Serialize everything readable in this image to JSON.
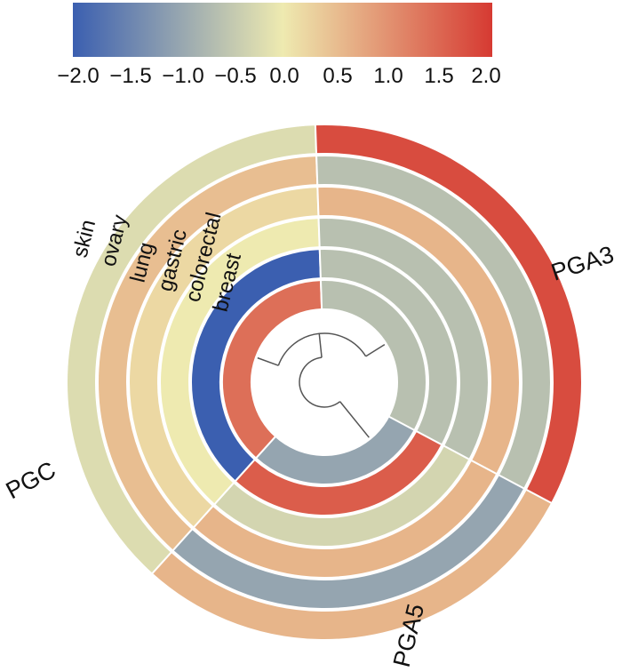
{
  "chart_data": {
    "type": "heatmap",
    "subtype": "circular",
    "colorbar": {
      "min": -2.0,
      "max": 2.0,
      "ticks": [
        "−2.0",
        "−1.5",
        "−1.0",
        "−0.5",
        "0.0",
        "0.5",
        "1.0",
        "1.5",
        "2.0"
      ],
      "tick_values": [
        -2.0,
        -1.5,
        -1.0,
        -0.5,
        0.0,
        0.5,
        1.0,
        1.5,
        2.0
      ],
      "colors": [
        "#3b5fb0",
        "#eeeab0",
        "#d63a32"
      ],
      "placement": "top"
    },
    "tracks": [
      "skin",
      "ovary",
      "lung",
      "gastric",
      "colorectal",
      "breast"
    ],
    "genes": [
      "PGC",
      "PGA5",
      "PGA3"
    ],
    "values": {
      "PGC": [
        0.6,
        -1.0,
        0.6,
        -0.3,
        1.6,
        -1.0
      ],
      "PGA5": [
        -0.2,
        0.5,
        0.2,
        0.0,
        -2.0,
        1.4
      ],
      "PGA3": [
        1.8,
        -0.6,
        0.6,
        -0.6,
        -0.6,
        -0.6
      ]
    },
    "dendrogram": true,
    "grid": false
  },
  "colors": {
    "background": "#ffffff",
    "separator": "#ffffff",
    "dendrogram": "#555555",
    "text": "#111111"
  }
}
